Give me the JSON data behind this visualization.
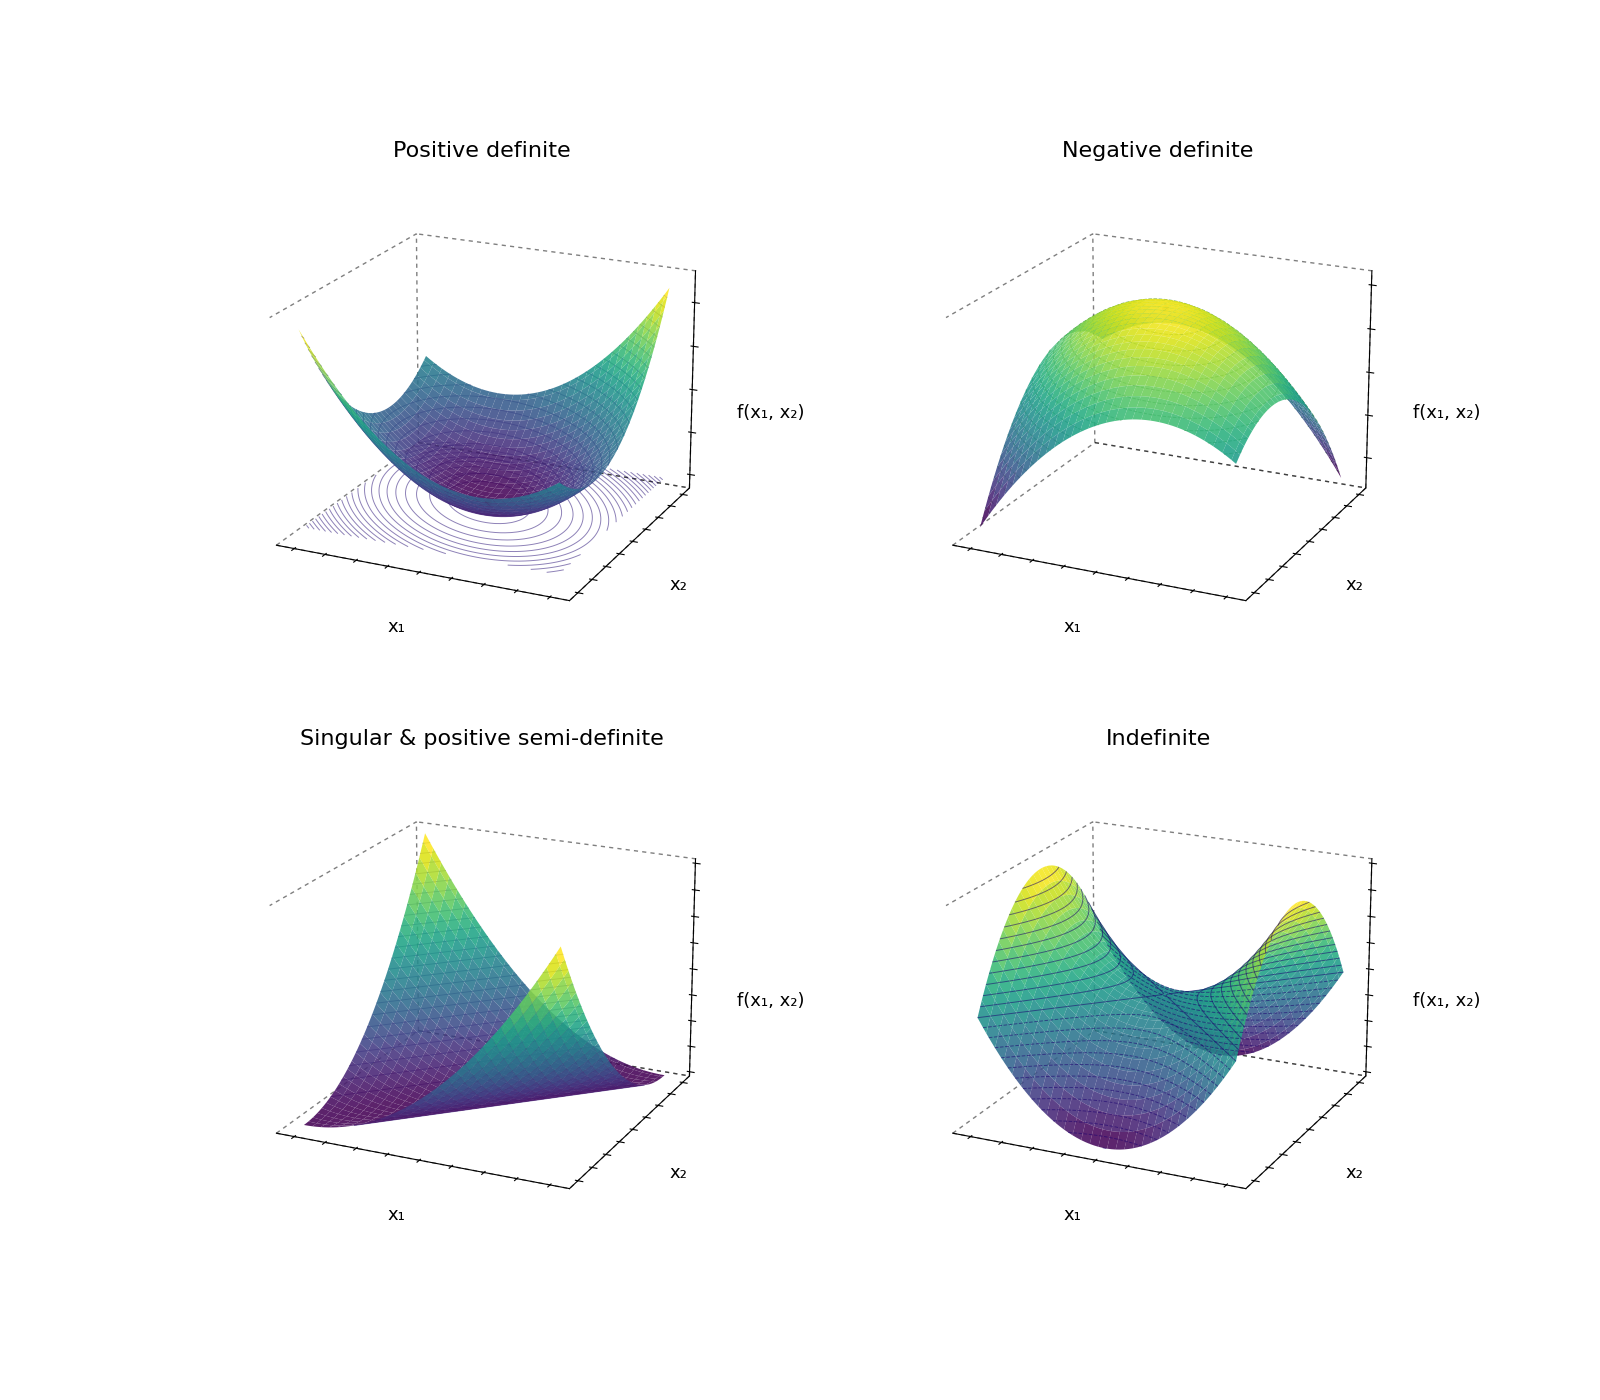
{
  "titles": [
    "Positive definite",
    "Negative definite",
    "Singular & positive semi-definite",
    "Indefinite"
  ],
  "zlabel": "f(x₁, x₂)",
  "xlabel": "x₁",
  "ylabel": "x₂",
  "colormap": "viridis",
  "elev_pd": 20,
  "azim_pd": -65,
  "elev_nd": 20,
  "azim_nd": -65,
  "elev_psd": 20,
  "azim_psd": -65,
  "elev_indef": 20,
  "azim_indef": -65,
  "alpha": 0.88,
  "n_grid": 60,
  "x_range": [
    -2,
    2
  ],
  "background_color": "white",
  "title_fontsize": 16,
  "label_fontsize": 13,
  "contour_color": "#1a006e",
  "contour_alpha": 0.55,
  "contour_lw": 0.7,
  "n_contours": 25
}
